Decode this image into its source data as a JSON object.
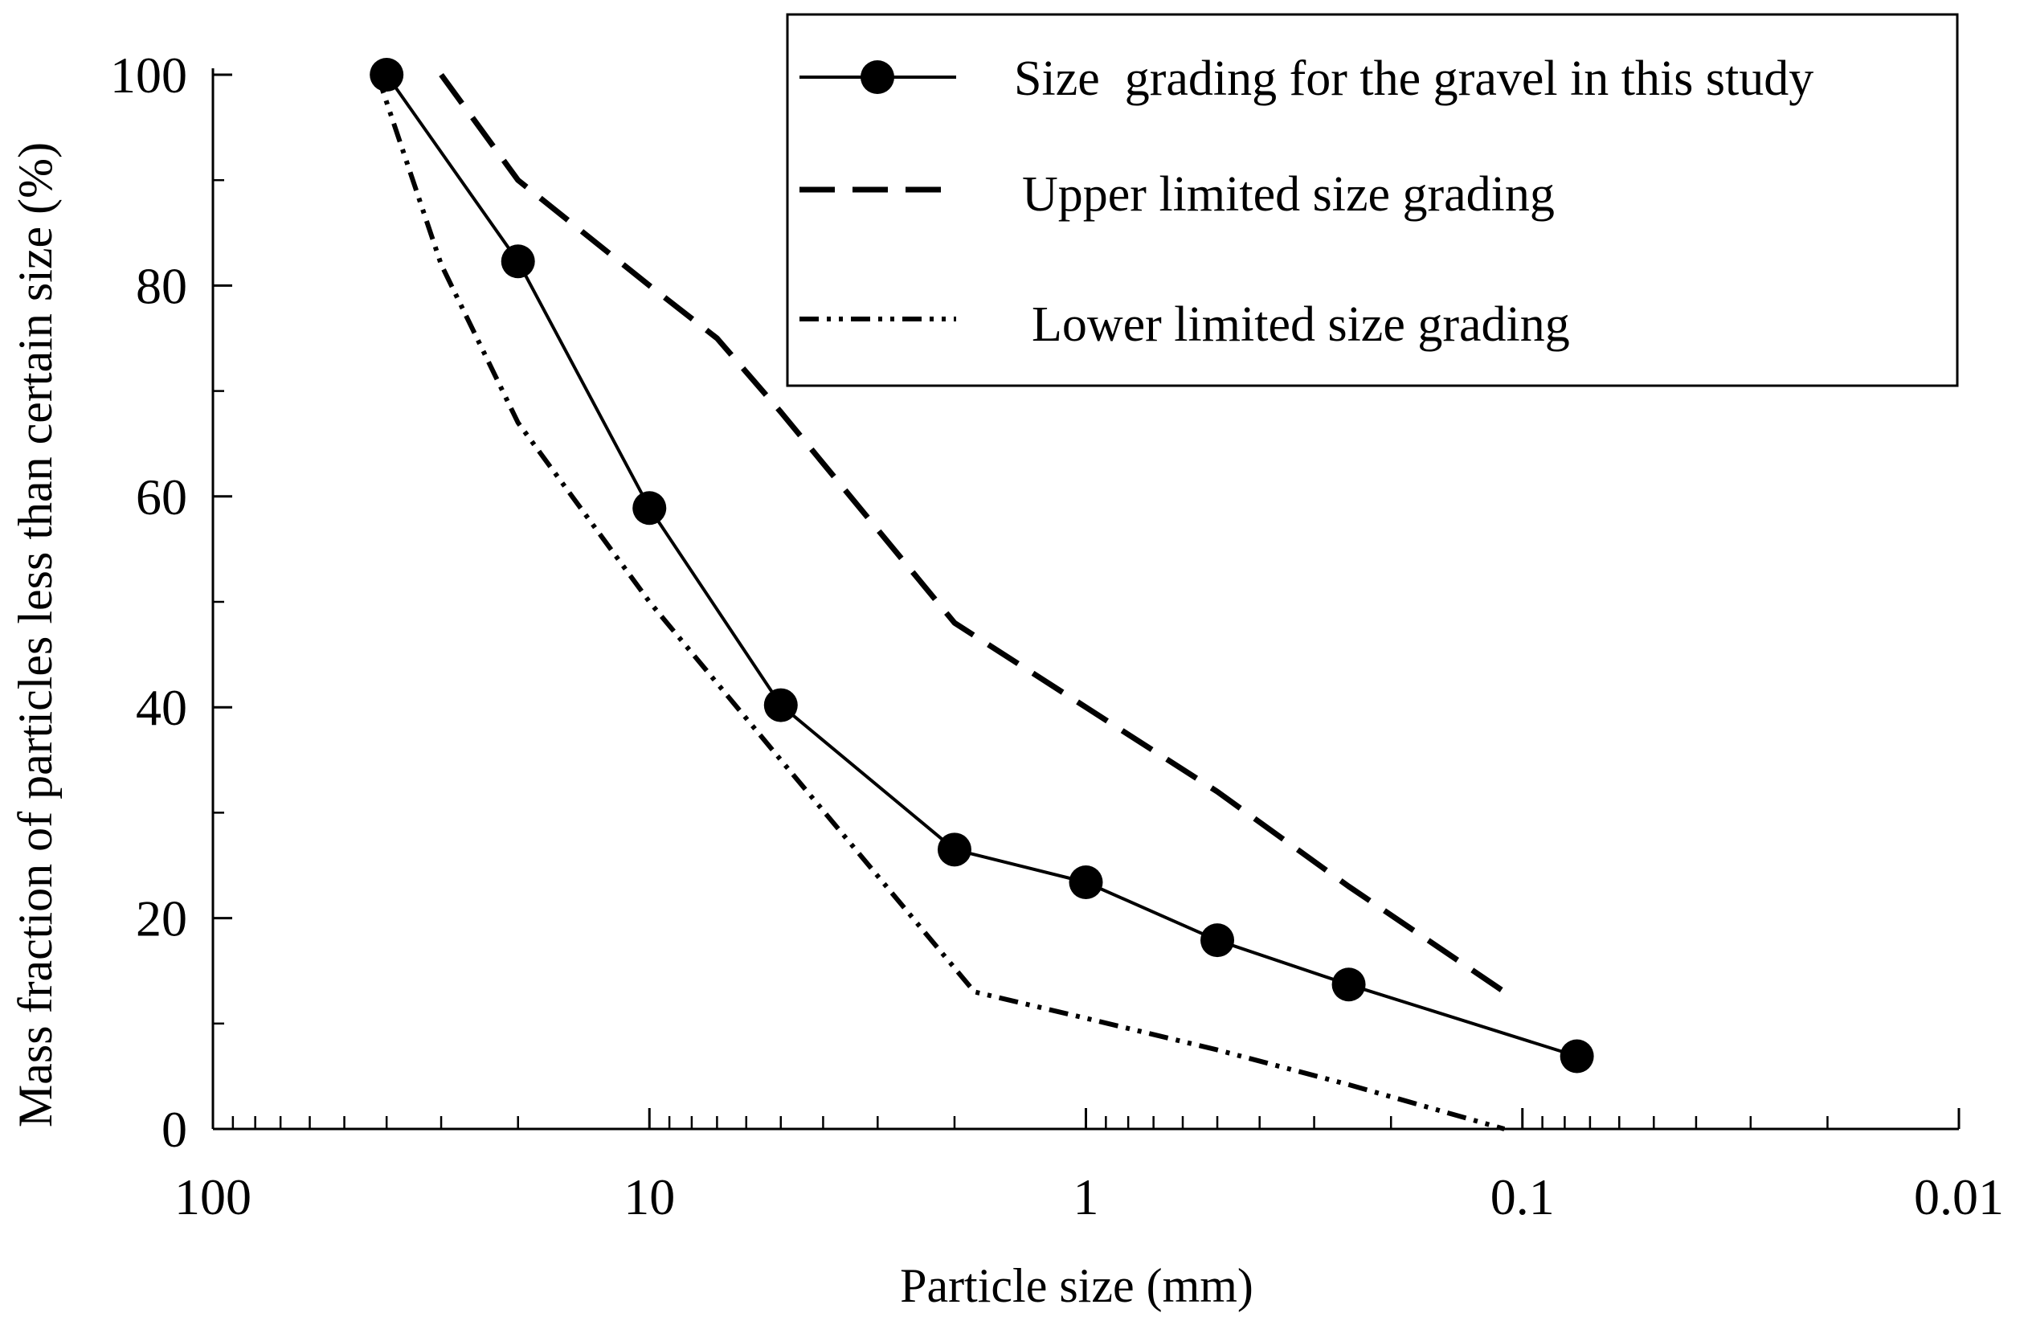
{
  "chart_data": {
    "type": "line",
    "xlabel": "Particle size (mm)",
    "ylabel": "Mass fraction of  particles less than certain size (%)",
    "x_scale": "log",
    "x_reversed": true,
    "xlim": [
      100,
      0.01
    ],
    "ylim": [
      0,
      100
    ],
    "x_ticks": [
      100,
      10,
      1,
      0.1,
      0.01
    ],
    "x_tick_labels": [
      "100",
      "10",
      "1",
      "0.1",
      "0.01"
    ],
    "y_ticks": [
      0,
      20,
      40,
      60,
      80,
      100
    ],
    "y_tick_labels": [
      "0",
      "20",
      "40",
      "60",
      "80",
      "100"
    ],
    "grid": false,
    "legend_position": "top-right",
    "series": [
      {
        "name": "Size  grading for the gravel in this study",
        "style": "solid-circle-markers",
        "x": [
          40,
          20,
          10,
          5,
          2,
          1,
          0.5,
          0.25,
          0.075
        ],
        "y": [
          100,
          82.3,
          58.9,
          40.2,
          26.5,
          23.4,
          17.9,
          13.7,
          6.9
        ]
      },
      {
        "name": "Upper limited size grading",
        "style": "dashed",
        "x": [
          30,
          20,
          10,
          7,
          5,
          2,
          1,
          0.5,
          0.25,
          0.11
        ],
        "y": [
          100,
          90,
          80,
          75,
          68,
          48,
          40,
          32,
          23,
          13
        ]
      },
      {
        "name": "Lower limited size grading",
        "style": "dash-dot-dot",
        "x": [
          42,
          30,
          20,
          10,
          5,
          1.8,
          1,
          0.5,
          0.25,
          0.11
        ],
        "y": [
          100,
          82,
          67,
          50,
          35,
          13,
          10.5,
          7.5,
          4.2,
          0
        ]
      }
    ]
  }
}
